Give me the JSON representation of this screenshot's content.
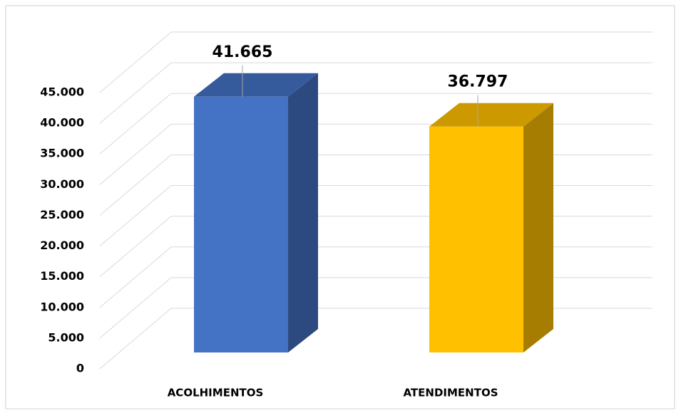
{
  "chart_data": {
    "type": "bar3d",
    "categories": [
      "ACOLHIMENTOS",
      "ATENDIMENTOS"
    ],
    "series": [
      {
        "colors": [
          "#4472c4",
          "#ffc000"
        ],
        "values": [
          41665,
          36797
        ],
        "value_labels": [
          "41.665",
          "36.797"
        ]
      }
    ],
    "ylim": [
      0,
      45000
    ],
    "yticks": [
      0,
      {
        "value": 5000,
        "label": "5.000"
      },
      {
        "value": 10000,
        "label": "10.000"
      },
      {
        "value": 15000,
        "label": "15.000"
      },
      {
        "value": 20000,
        "label": "20.000"
      },
      {
        "value": 25000,
        "label": "25.000"
      },
      {
        "value": 30000,
        "label": "30.000"
      },
      {
        "value": 35000,
        "label": "35.000"
      },
      {
        "value": 40000,
        "label": "40.000"
      },
      {
        "value": 45000,
        "label": "45.000"
      }
    ],
    "grid": true
  }
}
